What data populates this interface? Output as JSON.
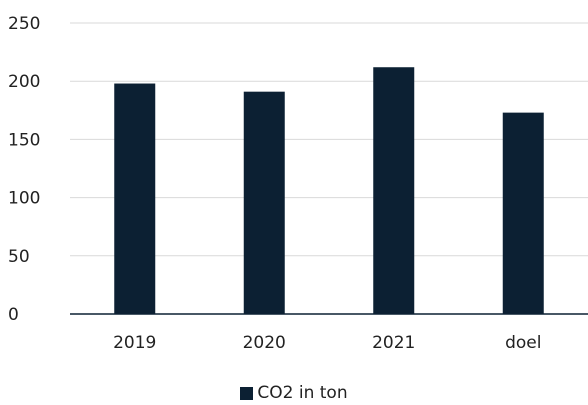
{
  "chart_data": {
    "type": "bar",
    "title": "",
    "xlabel": "",
    "ylabel": "",
    "categories": [
      "2019",
      "2020",
      "2021",
      "doel"
    ],
    "series": [
      {
        "name": "CO2 in ton",
        "values": [
          198,
          191,
          212,
          173
        ]
      }
    ],
    "ylim": [
      0,
      250
    ],
    "yticks": [
      0,
      50,
      100,
      150,
      200,
      250
    ],
    "grid": true,
    "legend_position": "bottom-center",
    "colors": {
      "bar": "#0c2033",
      "grid": "#d9d9d9",
      "axis": "#0c2033",
      "text": "#222222"
    }
  }
}
